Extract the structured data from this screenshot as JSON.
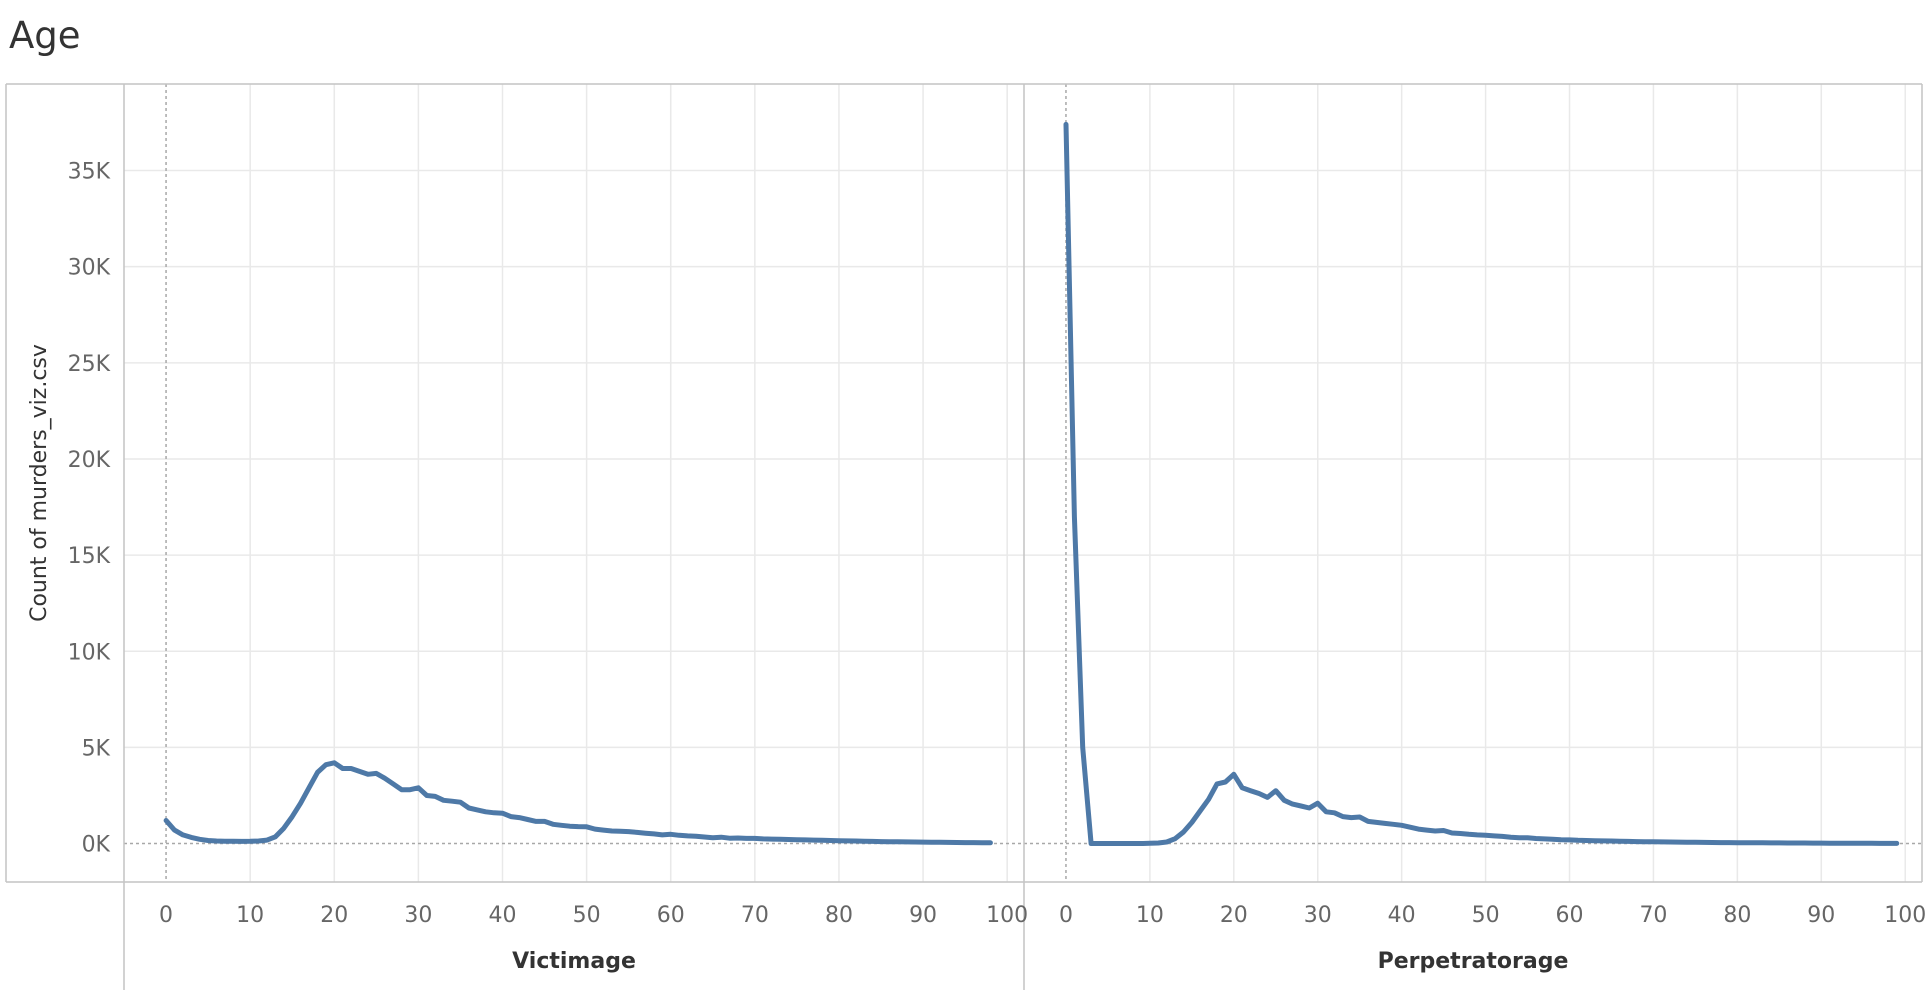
{
  "chart_data": {
    "type": "line",
    "title": "Age",
    "ylabel": "Count of murders_viz.csv",
    "ylim": [
      -2000,
      39500
    ],
    "yticks": [
      0,
      5000,
      10000,
      15000,
      20000,
      25000,
      30000,
      35000
    ],
    "ytick_labels": [
      "0K",
      "5K",
      "10K",
      "15K",
      "20K",
      "25K",
      "30K",
      "35K"
    ],
    "xlim": [
      -5,
      102
    ],
    "xticks": [
      0,
      10,
      20,
      30,
      40,
      50,
      60,
      70,
      80,
      90,
      100
    ],
    "xtick_labels": [
      "0",
      "10",
      "20",
      "30",
      "40",
      "50",
      "60",
      "70",
      "80",
      "90",
      "100"
    ],
    "grid": true,
    "line_color": "#4e79a7",
    "panels": [
      {
        "xlabel": "Victimage",
        "series": [
          {
            "x": [
              0,
              1,
              2,
              3,
              4,
              5,
              6,
              7,
              8,
              9,
              10,
              11,
              12,
              13,
              14,
              15,
              16,
              17,
              18,
              19,
              20,
              21,
              22,
              23,
              24,
              25,
              26,
              27,
              28,
              29,
              30,
              31,
              32,
              33,
              34,
              35,
              36,
              37,
              38,
              39,
              40,
              41,
              42,
              43,
              44,
              45,
              46,
              47,
              48,
              49,
              50,
              51,
              52,
              53,
              54,
              55,
              56,
              57,
              58,
              59,
              60,
              61,
              62,
              63,
              64,
              65,
              66,
              67,
              68,
              69,
              70,
              71,
              72,
              73,
              74,
              75,
              76,
              77,
              78,
              79,
              80,
              81,
              82,
              83,
              84,
              85,
              86,
              87,
              88,
              89,
              90,
              91,
              92,
              93,
              94,
              95,
              96,
              97,
              98
            ],
            "y": [
              1200,
              700,
              450,
              320,
              220,
              160,
              130,
              120,
              115,
              110,
              115,
              130,
              180,
              350,
              800,
              1400,
              2100,
              2900,
              3700,
              4100,
              4200,
              3900,
              3900,
              3750,
              3600,
              3650,
              3400,
              3100,
              2800,
              2800,
              2900,
              2500,
              2450,
              2250,
              2200,
              2150,
              1850,
              1750,
              1650,
              1600,
              1580,
              1400,
              1350,
              1250,
              1150,
              1150,
              1000,
              950,
              900,
              880,
              870,
              750,
              700,
              650,
              640,
              620,
              580,
              540,
              500,
              450,
              480,
              430,
              400,
              380,
              340,
              300,
              330,
              280,
              290,
              270,
              270,
              240,
              230,
              220,
              210,
              200,
              190,
              180,
              170,
              160,
              150,
              140,
              130,
              120,
              110,
              100,
              95,
              90,
              85,
              80,
              75,
              70,
              65,
              60,
              55,
              50,
              48,
              45,
              40
            ]
          }
        ]
      },
      {
        "xlabel": "Perpetratorage",
        "series": [
          {
            "x": [
              0,
              1,
              2,
              3,
              4,
              5,
              6,
              7,
              8,
              9,
              10,
              11,
              12,
              13,
              14,
              15,
              16,
              17,
              18,
              19,
              20,
              21,
              22,
              23,
              24,
              25,
              26,
              27,
              28,
              29,
              30,
              31,
              32,
              33,
              34,
              35,
              36,
              37,
              38,
              39,
              40,
              41,
              42,
              43,
              44,
              45,
              46,
              47,
              48,
              49,
              50,
              51,
              52,
              53,
              54,
              55,
              56,
              57,
              58,
              59,
              60,
              61,
              62,
              63,
              64,
              65,
              66,
              67,
              68,
              69,
              70,
              71,
              72,
              73,
              74,
              75,
              76,
              77,
              78,
              79,
              80,
              81,
              82,
              83,
              84,
              85,
              86,
              87,
              88,
              89,
              90,
              91,
              92,
              93,
              94,
              95,
              96,
              97,
              98,
              99
            ],
            "y": [
              37400,
              17000,
              5000,
              0,
              0,
              0,
              0,
              0,
              0,
              0,
              10,
              30,
              80,
              250,
              600,
              1100,
              1700,
              2300,
              3100,
              3200,
              3600,
              2900,
              2750,
              2600,
              2400,
              2750,
              2250,
              2050,
              1950,
              1850,
              2100,
              1650,
              1600,
              1400,
              1350,
              1380,
              1150,
              1100,
              1050,
              1000,
              950,
              850,
              750,
              700,
              650,
              680,
              550,
              520,
              480,
              450,
              430,
              400,
              370,
              330,
              300,
              300,
              260,
              240,
              220,
              200,
              190,
              170,
              160,
              150,
              140,
              130,
              120,
              110,
              100,
              95,
              90,
              85,
              80,
              75,
              70,
              65,
              60,
              55,
              50,
              48,
              45,
              42,
              40,
              38,
              35,
              33,
              30,
              28,
              26,
              24,
              22,
              20,
              18,
              16,
              14,
              12,
              10,
              9,
              8,
              7
            ]
          }
        ]
      }
    ]
  }
}
